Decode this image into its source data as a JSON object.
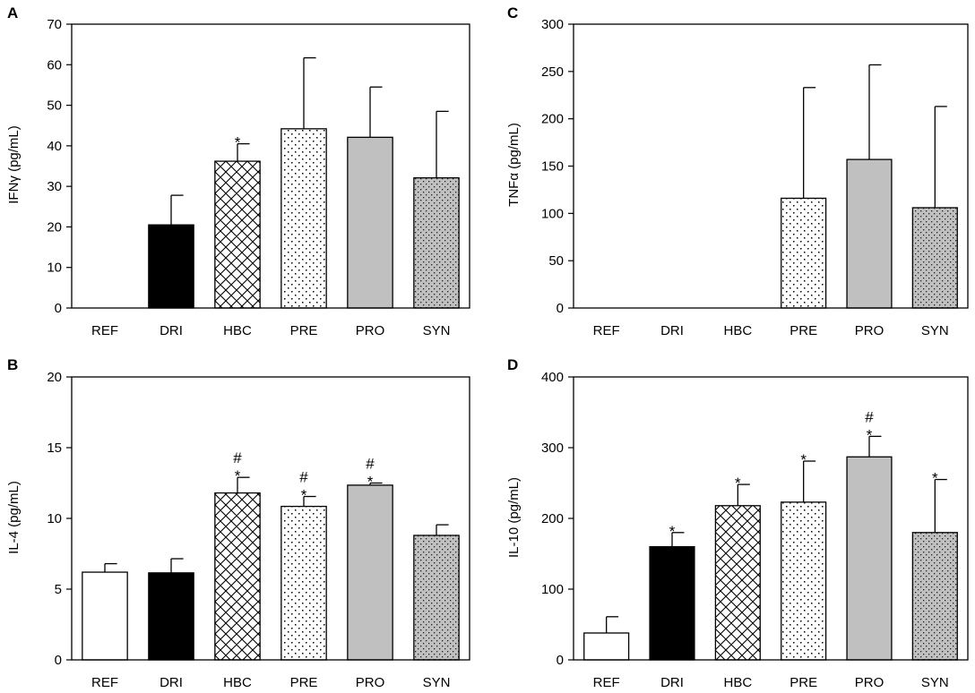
{
  "chart_data": [
    {
      "panel": "A",
      "type": "bar",
      "ylabel": "IFNγ (pg/mL)",
      "ylim": [
        0,
        70
      ],
      "yticks": [
        0,
        10,
        20,
        30,
        40,
        50,
        60,
        70
      ],
      "categories": [
        "REF",
        "DRI",
        "HBC",
        "PRE",
        "PRO",
        "SYN"
      ],
      "values": [
        0,
        20.5,
        36.2,
        44.2,
        42.1,
        32.1
      ],
      "errors": [
        0,
        7.3,
        4.3,
        17.5,
        12.4,
        16.4
      ],
      "annotations": [
        "",
        "",
        "*",
        "",
        "",
        ""
      ]
    },
    {
      "panel": "B",
      "type": "bar",
      "ylabel": "IL-4 (pg/mL)",
      "ylim": [
        0,
        20
      ],
      "yticks": [
        0,
        5,
        10,
        15,
        20
      ],
      "categories": [
        "REF",
        "DRI",
        "HBC",
        "PRE",
        "PRO",
        "SYN"
      ],
      "values": [
        6.2,
        6.15,
        11.8,
        10.85,
        12.35,
        8.8
      ],
      "errors": [
        0.6,
        1.0,
        1.1,
        0.7,
        0.15,
        0.75
      ],
      "annotations": [
        "",
        "",
        "#\n*",
        "#\n*",
        "#\n*",
        ""
      ]
    },
    {
      "panel": "C",
      "type": "bar",
      "ylabel": "TNFα (pg/mL)",
      "ylim": [
        0,
        300
      ],
      "yticks": [
        0,
        50,
        100,
        150,
        200,
        250,
        300
      ],
      "categories": [
        "REF",
        "DRI",
        "HBC",
        "PRE",
        "PRO",
        "SYN"
      ],
      "values": [
        0,
        0,
        0,
        116,
        157,
        106
      ],
      "errors": [
        0,
        0,
        0,
        117,
        100,
        107
      ],
      "annotations": [
        "",
        "",
        "",
        "",
        "",
        ""
      ]
    },
    {
      "panel": "D",
      "type": "bar",
      "ylabel": "IL-10 (pg/mL)",
      "ylim": [
        0,
        400
      ],
      "yticks": [
        0,
        100,
        200,
        300,
        400
      ],
      "categories": [
        "REF",
        "DRI",
        "HBC",
        "PRE",
        "PRO",
        "SYN"
      ],
      "values": [
        38,
        160,
        218,
        223,
        287,
        180
      ],
      "errors": [
        23,
        20,
        30,
        58,
        29,
        75
      ],
      "annotations": [
        "",
        "*",
        "*",
        "*",
        "#\n*",
        "*"
      ]
    }
  ],
  "fills": {
    "REF": "white",
    "DRI": "black",
    "HBC": "crosshatch",
    "PRE": "sparse-dots",
    "PRO": "gray",
    "SYN": "gray-dots"
  },
  "colors": {
    "gray": "#c0c0c0",
    "ink": "#000000"
  }
}
